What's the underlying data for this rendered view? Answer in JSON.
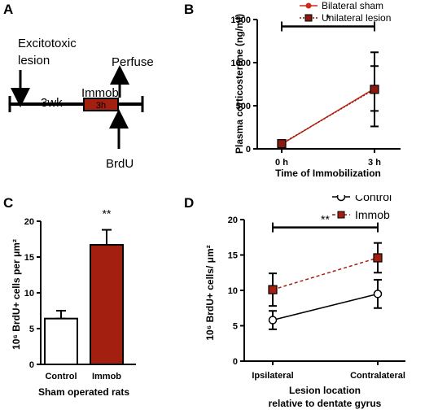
{
  "panels": {
    "A": {
      "letter": "A",
      "excito_line1": "Excitotoxic",
      "excito_line2": "lesion",
      "perfuse": "Perfuse",
      "immob": "Immob",
      "weeks": "3wk",
      "hours": "3h",
      "brdu": "BrdU"
    },
    "B": {
      "letter": "B",
      "sig": "*",
      "legend": [
        "Bilateral sham",
        "Unilateral lesion"
      ],
      "series_colors": [
        "#cc2a1a",
        "#8b1a0e"
      ]
    },
    "C": {
      "letter": "C",
      "sig": "**",
      "bar_colors": [
        "#ffffff",
        "#a31f10"
      ]
    },
    "D": {
      "letter": "D",
      "sig": "**",
      "legend": [
        "Control",
        "Immob"
      ],
      "series_colors": [
        "#000000",
        "#a31f10"
      ]
    }
  },
  "chart_data": [
    {
      "panel": "B",
      "type": "line",
      "xlabel": "Time of Immobilization",
      "ylabel": "Plasma corticosterone (ng/ml)",
      "categories": [
        "0 h",
        "3 h"
      ],
      "ylim": [
        0,
        1500
      ],
      "yticks": [
        "0",
        "500",
        "1000",
        "1500"
      ],
      "series": [
        {
          "name": "Bilateral sham",
          "values": [
            55,
            700
          ],
          "errors": [
            20,
            260
          ]
        },
        {
          "name": "Unilateral lesion",
          "values": [
            60,
            690
          ],
          "errors": [
            25,
            430
          ]
        }
      ]
    },
    {
      "panel": "C",
      "type": "bar",
      "xlabel": "Sham operated rats",
      "ylabel": "10⁶ BrdU+ cells per μm²",
      "categories": [
        "Control",
        "Immob"
      ],
      "values": [
        6.4,
        16.7
      ],
      "errors": [
        1.1,
        2.1
      ],
      "ylim": [
        0,
        20
      ],
      "yticks": [
        "0",
        "5",
        "10",
        "15",
        "20"
      ]
    },
    {
      "panel": "D",
      "type": "line",
      "xlabel": "Lesion location",
      "xlabel2": "relative to dentate gyrus",
      "ylabel": "10⁶ BrdU+ cells/ μm²",
      "categories": [
        "Ipsilateral",
        "Contralateral"
      ],
      "ylim": [
        0,
        20
      ],
      "yticks": [
        "0",
        "5",
        "10",
        "15",
        "20"
      ],
      "series": [
        {
          "name": "Control",
          "values": [
            5.8,
            9.5
          ],
          "errors": [
            1.3,
            2.0
          ]
        },
        {
          "name": "Immob",
          "values": [
            10.1,
            14.6
          ],
          "errors": [
            2.3,
            2.1
          ]
        }
      ]
    }
  ]
}
